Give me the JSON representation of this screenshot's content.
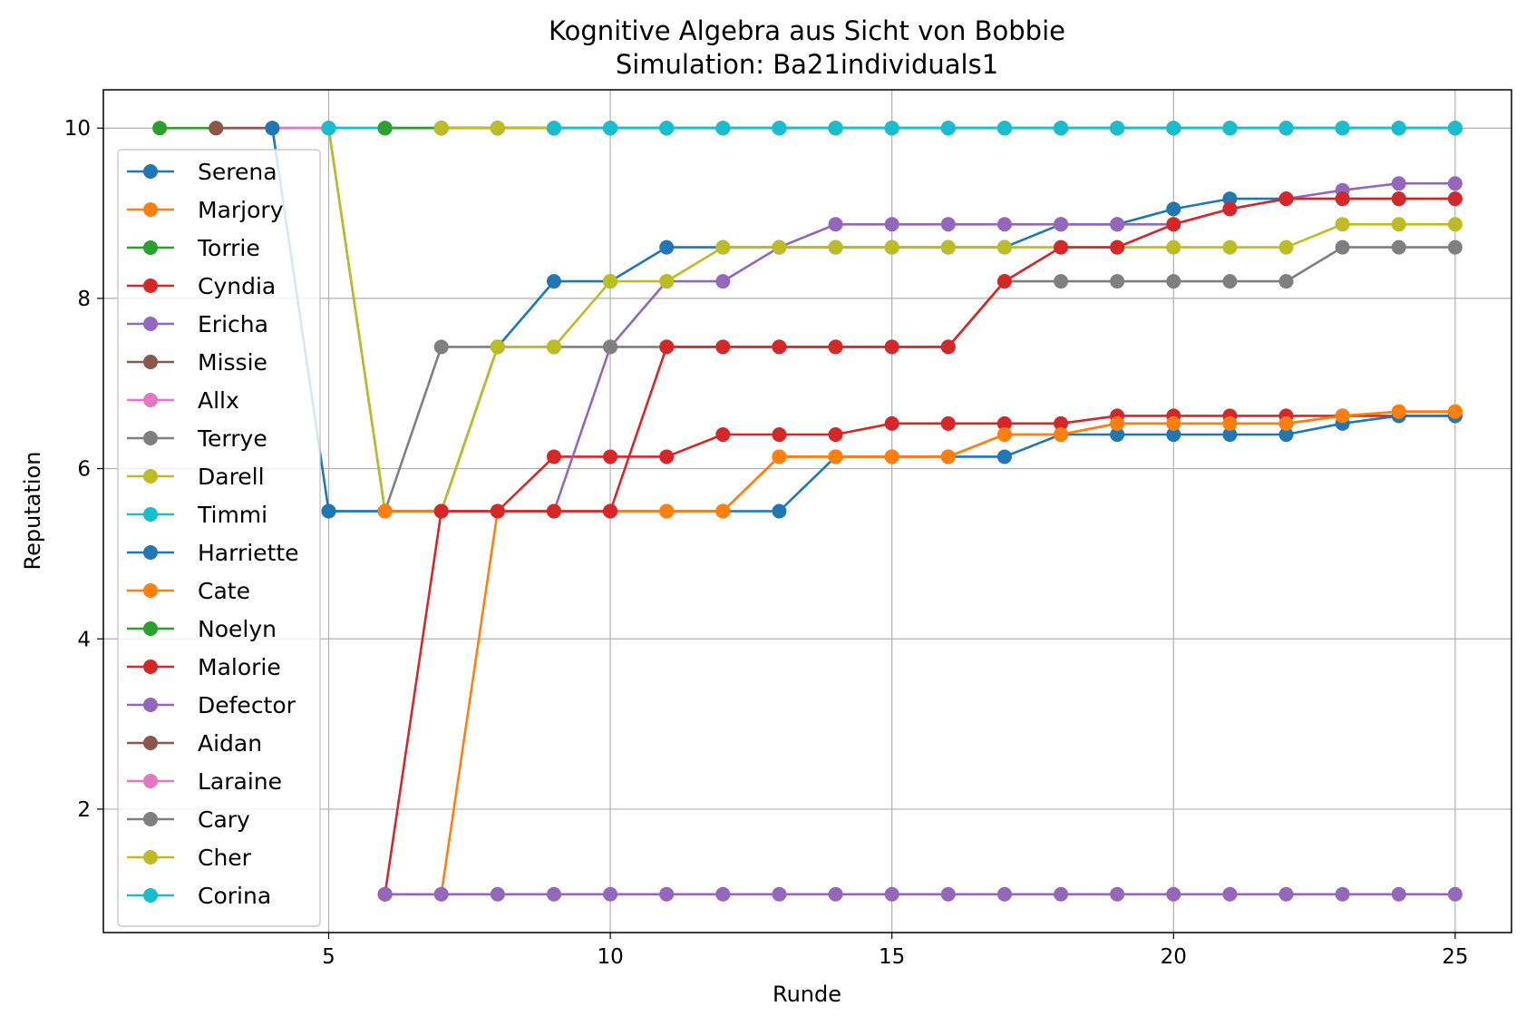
{
  "chart_data": {
    "type": "line",
    "title": "Kognitive Algebra aus Sicht von Bobbie",
    "subtitle": "Simulation: Ba21individuals1",
    "xlabel": "Runde",
    "ylabel": "Reputation",
    "xlim": [
      1,
      26
    ],
    "ylim": [
      0.55,
      10.45
    ],
    "xticks": [
      5,
      10,
      15,
      20,
      25
    ],
    "yticks": [
      2,
      4,
      6,
      8,
      10
    ],
    "grid": true,
    "legend_position": "upper-left",
    "series": [
      {
        "name": "Serena",
        "color": "#1f77b4",
        "x": [
          5,
          6,
          7,
          8,
          9,
          10,
          11,
          12,
          13,
          14,
          15,
          16,
          17,
          18,
          19,
          20,
          21,
          22,
          23,
          24,
          25
        ],
        "y": [
          5.5,
          5.5,
          5.5,
          7.43,
          8.2,
          8.2,
          8.6,
          8.6,
          8.6,
          8.6,
          8.6,
          8.6,
          8.6,
          8.87,
          8.87,
          9.05,
          9.17,
          9.17,
          9.17,
          9.17,
          9.17
        ]
      },
      {
        "name": "Marjory",
        "color": "#ff7f0e",
        "x": [
          6,
          7,
          8,
          9,
          10,
          11,
          12,
          13,
          14,
          15,
          16,
          17,
          18,
          19,
          20,
          21,
          22,
          23,
          24,
          25
        ],
        "y": [
          1,
          1,
          5.5,
          5.5,
          5.5,
          5.5,
          5.5,
          6.14,
          6.14,
          6.14,
          6.14,
          6.4,
          6.4,
          6.53,
          6.53,
          6.53,
          6.53,
          6.62,
          6.67,
          6.67
        ]
      },
      {
        "name": "Torrie",
        "color": "#2ca02c",
        "x": [
          2,
          3,
          4,
          5,
          6,
          7,
          8,
          9,
          10,
          11,
          12,
          13,
          14,
          15,
          16,
          17,
          18,
          19,
          20,
          21,
          22,
          23,
          24,
          25
        ],
        "y": [
          10,
          10,
          10,
          10,
          10,
          10,
          10,
          10,
          10,
          10,
          10,
          10,
          10,
          10,
          10,
          10,
          10,
          10,
          10,
          10,
          10,
          10,
          10,
          10
        ]
      },
      {
        "name": "Cyndia",
        "color": "#d62728",
        "x": [
          6,
          7,
          8,
          9,
          10,
          11,
          12,
          13,
          14,
          15,
          16,
          17,
          18,
          19,
          20,
          21,
          22,
          23,
          24,
          25
        ],
        "y": [
          1,
          5.5,
          5.5,
          6.14,
          6.14,
          6.14,
          6.4,
          6.4,
          6.4,
          6.53,
          6.53,
          6.53,
          6.53,
          6.62,
          6.62,
          6.62,
          6.62,
          6.62,
          6.62,
          6.62
        ]
      },
      {
        "name": "Ericha",
        "color": "#9467bd",
        "x": [
          6,
          7,
          8,
          9,
          10,
          11,
          12,
          13,
          14,
          15,
          16,
          17,
          18,
          19,
          20,
          21,
          22,
          23,
          24,
          25
        ],
        "y": [
          5.5,
          5.5,
          5.5,
          5.5,
          7.43,
          8.2,
          8.2,
          8.6,
          8.87,
          8.87,
          8.87,
          8.87,
          8.87,
          8.87,
          8.87,
          9.05,
          9.17,
          9.27,
          9.35,
          9.35
        ]
      },
      {
        "name": "Missie",
        "color": "#8c564b",
        "x": [
          3,
          4,
          5,
          6,
          7,
          8,
          9,
          10,
          11,
          12,
          13,
          14,
          15,
          16,
          17,
          18,
          19,
          20,
          21,
          22,
          23,
          24,
          25
        ],
        "y": [
          10,
          10,
          10,
          10,
          10,
          10,
          10,
          10,
          10,
          10,
          10,
          10,
          10,
          10,
          10,
          10,
          10,
          10,
          10,
          10,
          10,
          10,
          10
        ]
      },
      {
        "name": "Allx",
        "color": "#e377c2",
        "x": [
          4,
          5,
          6,
          7,
          8,
          9,
          10,
          11,
          12,
          13,
          14,
          15,
          16,
          17,
          18,
          19,
          20,
          21,
          22,
          23,
          24,
          25
        ],
        "y": [
          10,
          10,
          10,
          10,
          10,
          10,
          10,
          10,
          10,
          10,
          10,
          10,
          10,
          10,
          10,
          10,
          10,
          10,
          10,
          10,
          10,
          10
        ]
      },
      {
        "name": "Terrye",
        "color": "#7f7f7f",
        "x": [
          5,
          6,
          7,
          8,
          9,
          10,
          11,
          12,
          13,
          14,
          15,
          16,
          17,
          18,
          19,
          20,
          21,
          22,
          23,
          24,
          25
        ],
        "y": [
          10,
          5.5,
          7.43,
          7.43,
          7.43,
          7.43,
          7.43,
          7.43,
          7.43,
          7.43,
          7.43,
          7.43,
          8.2,
          8.2,
          8.2,
          8.2,
          8.2,
          8.2,
          8.6,
          8.6,
          8.6
        ]
      },
      {
        "name": "Darell",
        "color": "#bcbd22",
        "x": [
          5,
          6,
          7,
          8,
          9,
          10,
          11,
          12,
          13,
          14,
          15,
          16,
          17,
          18,
          19,
          20,
          21,
          22,
          23,
          24,
          25
        ],
        "y": [
          10,
          5.5,
          5.5,
          7.43,
          7.43,
          8.2,
          8.2,
          8.6,
          8.6,
          8.6,
          8.6,
          8.6,
          8.6,
          8.6,
          8.6,
          8.6,
          8.6,
          8.6,
          8.87,
          8.87,
          8.87
        ]
      },
      {
        "name": "Timmi",
        "color": "#17becf",
        "x": [
          5,
          6,
          7,
          8,
          9,
          10,
          11,
          12,
          13,
          14,
          15,
          16,
          17,
          18,
          19,
          20,
          21,
          22,
          23,
          24,
          25
        ],
        "y": [
          10,
          10,
          10,
          10,
          10,
          10,
          10,
          10,
          10,
          10,
          10,
          10,
          10,
          10,
          10,
          10,
          10,
          10,
          10,
          10,
          10
        ]
      },
      {
        "name": "Harriette",
        "color": "#1f77b4",
        "x": [
          4,
          5,
          6,
          7,
          8,
          9,
          10,
          11,
          12,
          13,
          14,
          15,
          16,
          17,
          18,
          19,
          20,
          21,
          22,
          23,
          24,
          25
        ],
        "y": [
          10,
          5.5,
          5.5,
          5.5,
          5.5,
          5.5,
          5.5,
          5.5,
          5.5,
          5.5,
          6.14,
          6.14,
          6.14,
          6.14,
          6.4,
          6.4,
          6.4,
          6.4,
          6.4,
          6.53,
          6.62,
          6.62
        ]
      },
      {
        "name": "Cate",
        "color": "#ff7f0e",
        "x": [
          6,
          7,
          8,
          9,
          10,
          11,
          12,
          13,
          14,
          15,
          16,
          17,
          18,
          19,
          20,
          21,
          22,
          23,
          24,
          25
        ],
        "y": [
          5.5,
          5.5,
          5.5,
          5.5,
          5.5,
          5.5,
          5.5,
          6.14,
          6.14,
          6.14,
          6.14,
          6.4,
          6.4,
          6.53,
          6.53,
          6.53,
          6.53,
          6.62,
          6.67,
          6.67
        ]
      },
      {
        "name": "Noelyn",
        "color": "#2ca02c",
        "x": [
          6,
          7,
          8,
          9,
          10,
          11,
          12,
          13,
          14,
          15,
          16,
          17,
          18,
          19,
          20,
          21,
          22,
          23,
          24,
          25
        ],
        "y": [
          10,
          10,
          10,
          10,
          10,
          10,
          10,
          10,
          10,
          10,
          10,
          10,
          10,
          10,
          10,
          10,
          10,
          10,
          10,
          10
        ]
      },
      {
        "name": "Malorie",
        "color": "#d62728",
        "x": [
          7,
          8,
          9,
          10,
          11,
          12,
          13,
          14,
          15,
          16,
          17,
          18,
          19,
          20,
          21,
          22,
          23,
          24,
          25
        ],
        "y": [
          5.5,
          5.5,
          5.5,
          5.5,
          7.43,
          7.43,
          7.43,
          7.43,
          7.43,
          7.43,
          8.2,
          8.6,
          8.6,
          8.87,
          9.05,
          9.17,
          9.17,
          9.17,
          9.17
        ]
      },
      {
        "name": "Defector",
        "color": "#9467bd",
        "x": [
          6,
          7,
          8,
          9,
          10,
          11,
          12,
          13,
          14,
          15,
          16,
          17,
          18,
          19,
          20,
          21,
          22,
          23,
          24,
          25
        ],
        "y": [
          1,
          1,
          1,
          1,
          1,
          1,
          1,
          1,
          1,
          1,
          1,
          1,
          1,
          1,
          1,
          1,
          1,
          1,
          1,
          1
        ]
      },
      {
        "name": "Aidan",
        "color": "#8c564b",
        "x": [
          7,
          8,
          9,
          10,
          11,
          12,
          13,
          14,
          15,
          16,
          17,
          18,
          19,
          20,
          21,
          22,
          23,
          24,
          25
        ],
        "y": [
          10,
          10,
          10,
          10,
          10,
          10,
          10,
          10,
          10,
          10,
          10,
          10,
          10,
          10,
          10,
          10,
          10,
          10,
          10
        ]
      },
      {
        "name": "Laraine",
        "color": "#e377c2",
        "x": [
          8,
          9,
          10,
          11,
          12,
          13,
          14,
          15,
          16,
          17,
          18,
          19,
          20,
          21,
          22,
          23,
          24,
          25
        ],
        "y": [
          10,
          10,
          10,
          10,
          10,
          10,
          10,
          10,
          10,
          10,
          10,
          10,
          10,
          10,
          10,
          10,
          10,
          10
        ]
      },
      {
        "name": "Cary",
        "color": "#7f7f7f",
        "x": [
          9,
          10,
          11,
          12,
          13,
          14,
          15,
          16,
          17,
          18,
          19,
          20,
          21,
          22,
          23,
          24,
          25
        ],
        "y": [
          10,
          10,
          10,
          10,
          10,
          10,
          10,
          10,
          10,
          10,
          10,
          10,
          10,
          10,
          10,
          10,
          10
        ]
      },
      {
        "name": "Cher",
        "color": "#bcbd22",
        "x": [
          7,
          8,
          9,
          10,
          11,
          12,
          13,
          14,
          15,
          16,
          17,
          18,
          19,
          20,
          21,
          22,
          23,
          24,
          25
        ],
        "y": [
          10,
          10,
          10,
          10,
          10,
          10,
          10,
          10,
          10,
          10,
          10,
          10,
          10,
          10,
          10,
          10,
          10,
          10,
          10
        ]
      },
      {
        "name": "Corina",
        "color": "#17becf",
        "x": [
          9,
          10,
          11,
          12,
          13,
          14,
          15,
          16,
          17,
          18,
          19,
          20,
          21,
          22,
          23,
          24,
          25
        ],
        "y": [
          10,
          10,
          10,
          10,
          10,
          10,
          10,
          10,
          10,
          10,
          10,
          10,
          10,
          10,
          10,
          10,
          10
        ]
      }
    ]
  }
}
